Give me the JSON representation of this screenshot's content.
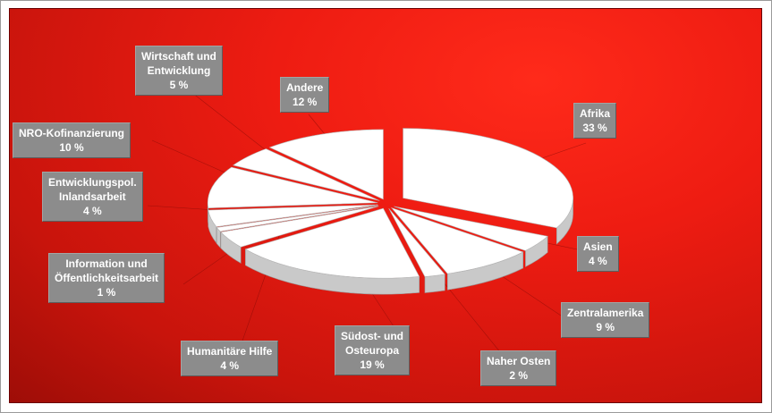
{
  "chart_data": {
    "type": "pie",
    "slices": [
      {
        "label": "Afrika",
        "value": 33,
        "display": "33 %"
      },
      {
        "label": "Asien",
        "value": 4,
        "display": "4 %"
      },
      {
        "label": "Zentralamerika",
        "value": 9,
        "display": "9 %"
      },
      {
        "label": "Naher Osten",
        "value": 2,
        "display": "2 %"
      },
      {
        "label": "Südost- und Osteuropa",
        "value": 19,
        "display": "19 %"
      },
      {
        "label": "Humanitäre Hilfe",
        "value": 4,
        "display": "4 %"
      },
      {
        "label": "Information und Öffentlichkeitsarbeit",
        "value": 1,
        "display": "1 %"
      },
      {
        "label": "Entwicklungspol. Inlandsarbeit",
        "value": 4,
        "display": "4 %"
      },
      {
        "label": "NRO-Kofinanzierung",
        "value": 10,
        "display": "10 %"
      },
      {
        "label": "Wirtschaft und Entwicklung",
        "value": 5,
        "display": "5 %"
      },
      {
        "label": "Andere",
        "value": 12,
        "display": "12 %"
      }
    ]
  },
  "labels": [
    {
      "name": "Afrika",
      "value": "33 %"
    },
    {
      "name": "Asien",
      "value": "4 %"
    },
    {
      "name": "Zentralamerika",
      "value": "9 %"
    },
    {
      "name": "Naher Osten",
      "value": "2 %"
    },
    {
      "name": "Südost- und\nOsteuropa",
      "value": "19 %"
    },
    {
      "name": "Humanitäre Hilfe",
      "value": "4 %"
    },
    {
      "name": "Information und\nÖffentlichkeitsarbeit",
      "value": "1 %"
    },
    {
      "name": "Entwicklungspol.\nInlandsarbeit",
      "value": "4 %"
    },
    {
      "name": "NRO-Kofinanzierung",
      "value": "10 %"
    },
    {
      "name": "Wirtschaft und\nEntwicklung",
      "value": "5 %"
    },
    {
      "name": "Andere",
      "value": "12 %"
    }
  ],
  "colors": {
    "background": "#e01810",
    "slice_top": "#ffffff",
    "slice_side": "#c9c9c9",
    "label_box": "#8c8c8c",
    "label_text": "#ffffff"
  }
}
